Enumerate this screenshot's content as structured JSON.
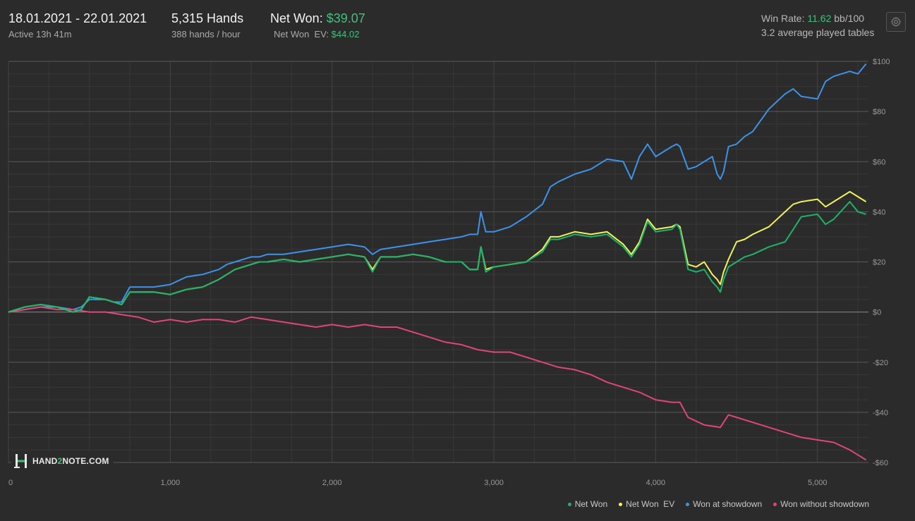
{
  "header": {
    "date_range": "18.01.2021 - 22.01.2021",
    "active": "Active 13h 41m",
    "hands": "5,315 Hands",
    "hands_rate": "388 hands / hour",
    "net_won_label": "Net Won:",
    "net_won_value": "$39.07",
    "net_won_ev_label": "Net Won  EV:",
    "net_won_ev_value": "$44.02",
    "win_rate_label": "Win Rate:",
    "win_rate_value": "11.62",
    "win_rate_unit": "bb/100",
    "avg_tables": "3.2 average played tables",
    "settings_icon": "gear-icon"
  },
  "logo": {
    "icon": "h-logo-icon",
    "text_a": "HAND",
    "text_b": "2",
    "text_c": "NOTE.COM"
  },
  "colors": {
    "background": "#2b2b2b",
    "grid_major": "#5a5a5a",
    "grid_minor": "#383838",
    "net_won": "#1db46a",
    "net_won_ev": "#f2f25c",
    "won_at_showdown": "#3d93e8",
    "won_without_showdown": "#e0457a",
    "accent_green": "#3ec27a"
  },
  "chart_data": {
    "type": "line",
    "title": "",
    "xlabel": "",
    "ylabel": "",
    "xlim": [
      0,
      5315
    ],
    "ylim": [
      -60,
      100
    ],
    "x_ticks": [
      0,
      1000,
      2000,
      3000,
      4000,
      5000
    ],
    "x_tick_labels": [
      "0",
      "1,000",
      "2,000",
      "3,000",
      "4,000",
      "5,000"
    ],
    "y_ticks": [
      100,
      80,
      60,
      40,
      20,
      0,
      -20,
      -40,
      -60
    ],
    "y_tick_labels": [
      "$100",
      "$80",
      "$60",
      "$40",
      "$20",
      "$0",
      "-$20",
      "-$40",
      "-$60"
    ],
    "grid": true,
    "legend_position": "bottom-right",
    "series": [
      {
        "name": "Net Won",
        "x": [
          0,
          100,
          200,
          300,
          400,
          450,
          500,
          600,
          650,
          700,
          750,
          800,
          900,
          1000,
          1100,
          1200,
          1300,
          1350,
          1400,
          1500,
          1550,
          1600,
          1700,
          1800,
          1900,
          2000,
          2100,
          2200,
          2250,
          2300,
          2400,
          2500,
          2600,
          2700,
          2800,
          2850,
          2900,
          2920,
          2950,
          3000,
          3100,
          3200,
          3300,
          3350,
          3400,
          3500,
          3600,
          3700,
          3800,
          3850,
          3900,
          3950,
          4000,
          4100,
          4130,
          4150,
          4200,
          4250,
          4300,
          4350,
          4380,
          4400,
          4420,
          4450,
          4500,
          4550,
          4600,
          4700,
          4800,
          4850,
          4900,
          5000,
          5050,
          5100,
          5200,
          5250,
          5300
        ],
        "y": [
          0,
          2,
          3,
          2,
          0,
          1,
          6,
          5,
          4,
          3,
          8,
          8,
          8,
          7,
          9,
          10,
          13,
          15,
          17,
          19,
          20,
          20,
          21,
          20,
          21,
          22,
          23,
          22,
          16,
          22,
          22,
          23,
          22,
          20,
          20,
          17,
          17,
          26,
          16,
          18,
          19,
          20,
          24,
          29,
          29,
          31,
          30,
          31,
          26,
          22,
          27,
          36,
          32,
          33,
          35,
          33,
          17,
          16,
          17,
          12,
          10,
          8,
          13,
          18,
          20,
          22,
          23,
          26,
          28,
          33,
          38,
          39,
          35,
          37,
          44,
          40,
          39
        ]
      },
      {
        "name": "Net Won  EV",
        "x": [
          0,
          100,
          200,
          300,
          400,
          450,
          500,
          600,
          650,
          700,
          750,
          800,
          900,
          1000,
          1100,
          1200,
          1300,
          1350,
          1400,
          1500,
          1550,
          1600,
          1700,
          1800,
          1900,
          2000,
          2100,
          2200,
          2250,
          2300,
          2400,
          2500,
          2600,
          2700,
          2800,
          2850,
          2900,
          2920,
          2950,
          3000,
          3100,
          3200,
          3300,
          3350,
          3400,
          3500,
          3600,
          3700,
          3800,
          3850,
          3900,
          3950,
          4000,
          4100,
          4130,
          4150,
          4200,
          4250,
          4300,
          4350,
          4380,
          4400,
          4420,
          4450,
          4500,
          4550,
          4600,
          4700,
          4800,
          4850,
          4900,
          5000,
          5050,
          5100,
          5200,
          5250,
          5300
        ],
        "y": [
          0,
          2,
          3,
          2,
          0,
          1,
          6,
          5,
          4,
          3,
          8,
          8,
          8,
          7,
          9,
          10,
          13,
          15,
          17,
          19,
          20,
          20,
          21,
          20,
          21,
          22,
          23,
          22,
          17,
          22,
          22,
          23,
          22,
          20,
          20,
          17,
          17,
          26,
          17,
          18,
          19,
          20,
          25,
          30,
          30,
          32,
          31,
          32,
          27,
          23,
          28,
          37,
          33,
          34,
          35,
          34,
          19,
          18,
          20,
          15,
          13,
          11,
          16,
          21,
          28,
          29,
          31,
          34,
          40,
          43,
          44,
          45,
          42,
          44,
          48,
          46,
          44
        ]
      },
      {
        "name": "Won at showdown",
        "x": [
          0,
          100,
          200,
          300,
          400,
          450,
          500,
          600,
          650,
          700,
          750,
          800,
          900,
          1000,
          1100,
          1200,
          1300,
          1350,
          1400,
          1500,
          1550,
          1600,
          1700,
          1800,
          1900,
          2000,
          2100,
          2200,
          2250,
          2300,
          2400,
          2500,
          2600,
          2700,
          2800,
          2850,
          2900,
          2920,
          2950,
          3000,
          3100,
          3200,
          3300,
          3350,
          3400,
          3500,
          3600,
          3700,
          3800,
          3850,
          3900,
          3950,
          4000,
          4100,
          4130,
          4150,
          4200,
          4250,
          4300,
          4350,
          4380,
          4400,
          4420,
          4450,
          4500,
          4550,
          4600,
          4700,
          4800,
          4850,
          4900,
          5000,
          5050,
          5100,
          5200,
          5250,
          5300
        ],
        "y": [
          0,
          1,
          2,
          2,
          1,
          2,
          5,
          5,
          4,
          4,
          10,
          10,
          10,
          11,
          14,
          15,
          17,
          19,
          20,
          22,
          22,
          23,
          23,
          24,
          25,
          26,
          27,
          26,
          23,
          25,
          26,
          27,
          28,
          29,
          30,
          31,
          31,
          40,
          32,
          32,
          34,
          38,
          43,
          50,
          52,
          55,
          57,
          61,
          60,
          53,
          62,
          67,
          62,
          66,
          67,
          66,
          57,
          58,
          60,
          62,
          55,
          53,
          56,
          66,
          67,
          70,
          72,
          81,
          87,
          89,
          86,
          85,
          92,
          94,
          96,
          95,
          99
        ]
      },
      {
        "name": "Won without showdown",
        "x": [
          0,
          100,
          200,
          300,
          400,
          500,
          600,
          700,
          800,
          900,
          1000,
          1100,
          1200,
          1300,
          1400,
          1500,
          1600,
          1700,
          1800,
          1900,
          2000,
          2100,
          2200,
          2300,
          2400,
          2500,
          2600,
          2700,
          2800,
          2900,
          3000,
          3100,
          3200,
          3300,
          3400,
          3500,
          3600,
          3700,
          3800,
          3900,
          4000,
          4100,
          4150,
          4200,
          4300,
          4400,
          4450,
          4500,
          4600,
          4700,
          4800,
          4900,
          5000,
          5100,
          5200,
          5300
        ],
        "y": [
          0,
          1,
          2,
          1,
          1,
          0,
          0,
          -1,
          -2,
          -4,
          -3,
          -4,
          -3,
          -3,
          -4,
          -2,
          -3,
          -4,
          -5,
          -6,
          -5,
          -6,
          -5,
          -6,
          -6,
          -8,
          -10,
          -12,
          -13,
          -15,
          -16,
          -16,
          -18,
          -20,
          -22,
          -23,
          -25,
          -28,
          -30,
          -32,
          -35,
          -36,
          -36,
          -42,
          -45,
          -46,
          -41,
          -42,
          -44,
          -46,
          -48,
          -50,
          -51,
          -52,
          -55,
          -59
        ]
      }
    ]
  }
}
